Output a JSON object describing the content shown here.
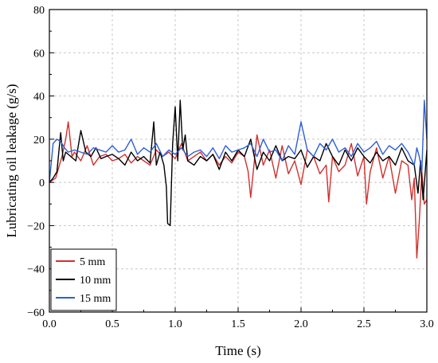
{
  "chart_data": {
    "type": "line",
    "title": "",
    "xlabel": "Time (s)",
    "ylabel": "Lubricating oil leakage (g/s)",
    "xlim": [
      0,
      3.0
    ],
    "ylim": [
      -60,
      80
    ],
    "xticks": [
      "0.0",
      "0.5",
      "1.0",
      "1.5",
      "2.0",
      "2.5",
      "3.0"
    ],
    "yticks": [
      "80",
      "60",
      "40",
      "20",
      "0",
      "−20",
      "−40",
      "−60"
    ],
    "grid": true,
    "legend_position": "bottom-left",
    "series": [
      {
        "name": "5 mm",
        "color": "#d0312d",
        "x": [
          0.0,
          0.05,
          0.1,
          0.13,
          0.15,
          0.18,
          0.2,
          0.25,
          0.3,
          0.35,
          0.4,
          0.45,
          0.5,
          0.55,
          0.6,
          0.65,
          0.7,
          0.75,
          0.8,
          0.85,
          0.9,
          0.95,
          1.0,
          1.05,
          1.1,
          1.15,
          1.2,
          1.25,
          1.3,
          1.35,
          1.4,
          1.45,
          1.5,
          1.55,
          1.58,
          1.6,
          1.65,
          1.7,
          1.75,
          1.8,
          1.85,
          1.9,
          1.95,
          2.0,
          2.05,
          2.1,
          2.15,
          2.2,
          2.22,
          2.25,
          2.3,
          2.35,
          2.4,
          2.45,
          2.5,
          2.52,
          2.55,
          2.6,
          2.65,
          2.7,
          2.75,
          2.8,
          2.85,
          2.88,
          2.9,
          2.92,
          2.94,
          2.96,
          2.98,
          3.0
        ],
        "values": [
          0,
          2,
          12,
          20,
          28,
          12,
          14,
          10,
          17,
          8,
          12,
          13,
          10,
          11,
          13,
          9,
          12,
          10,
          8,
          15,
          12,
          14,
          11,
          18,
          10,
          12,
          14,
          10,
          13,
          8,
          12,
          9,
          14,
          12,
          5,
          -7,
          22,
          8,
          15,
          2,
          17,
          4,
          10,
          -1,
          15,
          12,
          4,
          8,
          -9,
          12,
          5,
          8,
          18,
          3,
          12,
          -10,
          5,
          16,
          2,
          12,
          -5,
          10,
          8,
          -8,
          2,
          -35,
          -18,
          5,
          -10,
          -8
        ]
      },
      {
        "name": "10 mm",
        "color": "#000000",
        "x": [
          0.0,
          0.03,
          0.06,
          0.09,
          0.11,
          0.13,
          0.17,
          0.21,
          0.25,
          0.29,
          0.33,
          0.37,
          0.41,
          0.45,
          0.5,
          0.55,
          0.6,
          0.65,
          0.7,
          0.75,
          0.8,
          0.83,
          0.85,
          0.88,
          0.91,
          0.93,
          0.94,
          0.96,
          0.98,
          1.0,
          1.02,
          1.04,
          1.06,
          1.08,
          1.1,
          1.15,
          1.2,
          1.25,
          1.3,
          1.35,
          1.4,
          1.45,
          1.5,
          1.55,
          1.6,
          1.65,
          1.7,
          1.75,
          1.8,
          1.85,
          1.9,
          1.95,
          2.0,
          2.05,
          2.1,
          2.15,
          2.2,
          2.25,
          2.3,
          2.35,
          2.4,
          2.45,
          2.5,
          2.55,
          2.6,
          2.65,
          2.7,
          2.75,
          2.8,
          2.85,
          2.9,
          2.93,
          2.95,
          2.97,
          3.0
        ],
        "values": [
          0,
          2,
          5,
          23,
          10,
          14,
          12,
          10,
          24,
          14,
          12,
          16,
          11,
          12,
          13,
          11,
          8,
          14,
          10,
          12,
          9,
          28,
          8,
          14,
          8,
          -2,
          -19,
          -20,
          18,
          35,
          10,
          38,
          15,
          22,
          10,
          8,
          12,
          10,
          13,
          6,
          14,
          10,
          15,
          12,
          20,
          6,
          14,
          10,
          17,
          10,
          12,
          11,
          15,
          7,
          12,
          10,
          18,
          12,
          8,
          15,
          10,
          16,
          12,
          9,
          14,
          10,
          12,
          8,
          16,
          10,
          8,
          -5,
          10,
          -8,
          15
        ]
      },
      {
        "name": "15 mm",
        "color": "#2c5fd6",
        "x": [
          0.0,
          0.03,
          0.06,
          0.09,
          0.12,
          0.15,
          0.2,
          0.25,
          0.3,
          0.35,
          0.4,
          0.45,
          0.5,
          0.55,
          0.6,
          0.65,
          0.7,
          0.75,
          0.8,
          0.85,
          0.9,
          0.95,
          1.0,
          1.05,
          1.1,
          1.15,
          1.2,
          1.25,
          1.3,
          1.35,
          1.4,
          1.45,
          1.5,
          1.55,
          1.6,
          1.65,
          1.7,
          1.75,
          1.8,
          1.85,
          1.9,
          1.95,
          2.0,
          2.05,
          2.1,
          2.15,
          2.2,
          2.25,
          2.3,
          2.35,
          2.4,
          2.45,
          2.5,
          2.55,
          2.6,
          2.65,
          2.7,
          2.75,
          2.8,
          2.85,
          2.9,
          2.92,
          2.94,
          2.96,
          2.98,
          3.0
        ],
        "values": [
          0,
          18,
          20,
          19,
          16,
          14,
          15,
          14,
          13,
          16,
          15,
          14,
          17,
          14,
          15,
          20,
          13,
          16,
          14,
          18,
          12,
          15,
          13,
          16,
          12,
          14,
          15,
          12,
          16,
          11,
          17,
          14,
          15,
          16,
          18,
          12,
          20,
          14,
          15,
          10,
          17,
          13,
          28,
          15,
          12,
          18,
          15,
          20,
          14,
          16,
          12,
          18,
          14,
          16,
          19,
          13,
          17,
          15,
          18,
          14,
          8,
          16,
          12,
          5,
          38,
          20
        ]
      }
    ]
  }
}
